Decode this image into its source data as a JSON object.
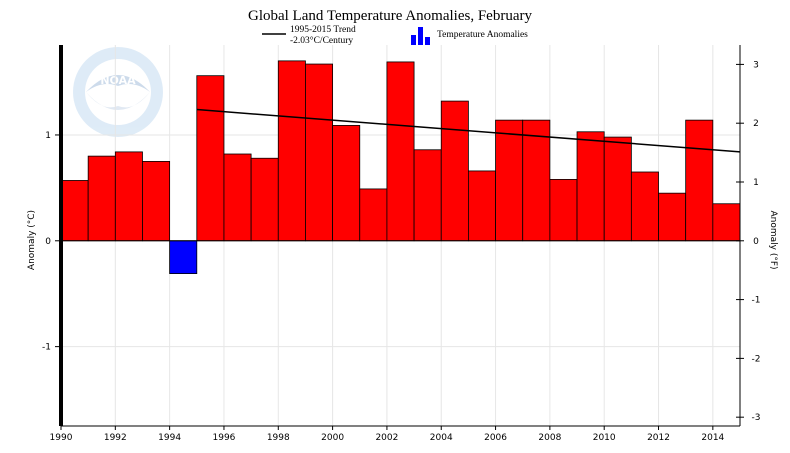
{
  "chart_data": {
    "type": "bar",
    "title": "Global Land Temperature Anomalies, February",
    "x": [
      1990,
      1991,
      1992,
      1993,
      1994,
      1995,
      1996,
      1997,
      1998,
      1999,
      2000,
      2001,
      2002,
      2003,
      2004,
      2005,
      2006,
      2007,
      2008,
      2009,
      2010,
      2011,
      2012,
      2013,
      2014
    ],
    "values": [
      0.57,
      0.8,
      0.84,
      0.75,
      -0.31,
      1.56,
      0.82,
      0.78,
      1.7,
      1.67,
      1.09,
      0.49,
      1.69,
      0.86,
      1.32,
      0.66,
      1.14,
      1.14,
      0.58,
      1.03,
      0.98,
      0.65,
      0.45,
      1.14,
      0.35
    ],
    "positive_color": "#ff0000",
    "negative_color": "#0000ff",
    "trend": {
      "label_line1": "1995-2015 Trend",
      "label_line2": "-2.03°C/Century",
      "start": [
        1995,
        1.24
      ],
      "end": [
        2015,
        0.84
      ]
    },
    "legend_bars_label": "Temperature Anomalies",
    "xlim": [
      1990,
      2015
    ],
    "xticks": [
      1990,
      1992,
      1994,
      1996,
      1998,
      2000,
      2002,
      2004,
      2006,
      2008,
      2010,
      2012,
      2014
    ],
    "ylim": [
      -1.75,
      1.85
    ],
    "yticks_left": [
      {
        "value": 1,
        "label": "1"
      },
      {
        "value": 0,
        "label": "0"
      },
      {
        "value": -1,
        "label": "-1"
      }
    ],
    "yticks_right": [
      {
        "value": 3,
        "label": "3"
      },
      {
        "value": 2,
        "label": "2"
      },
      {
        "value": 1,
        "label": "1"
      },
      {
        "value": 0,
        "label": "0"
      },
      {
        "value": -1,
        "label": "-1"
      },
      {
        "value": -2,
        "label": "-2"
      },
      {
        "value": -3,
        "label": "-3"
      }
    ],
    "ylabel_left": "Anomaly (°C)",
    "ylabel_right": "Anomaly (°F)",
    "watermark": "NOAA",
    "grid": true
  }
}
